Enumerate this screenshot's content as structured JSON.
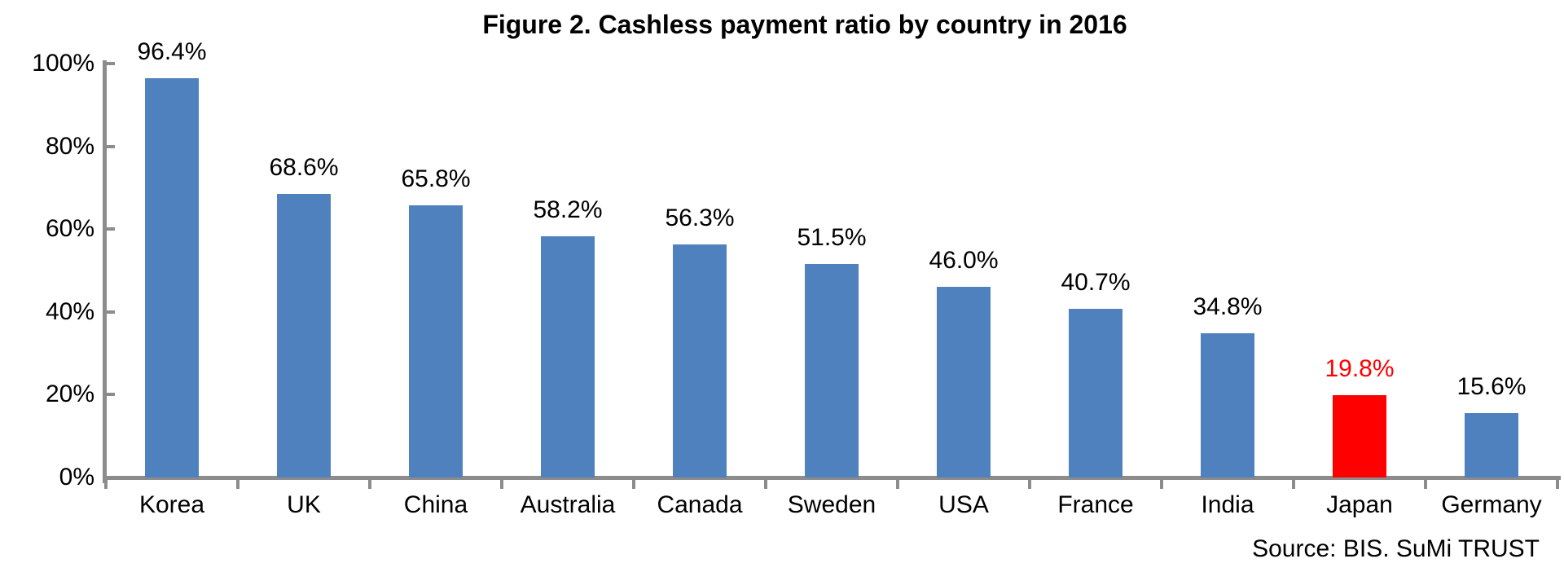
{
  "chart_data": {
    "type": "bar",
    "title": "Figure 2. Cashless payment ratio by country in 2016",
    "categories": [
      "Korea",
      "UK",
      "China",
      "Australia",
      "Canada",
      "Sweden",
      "USA",
      "France",
      "India",
      "Japan",
      "Germany"
    ],
    "values": [
      96.4,
      68.6,
      65.8,
      58.2,
      56.3,
      51.5,
      46.0,
      40.7,
      34.8,
      19.8,
      15.6
    ],
    "value_labels": [
      "96.4%",
      "68.6%",
      "65.8%",
      "58.2%",
      "56.3%",
      "51.5%",
      "46.0%",
      "40.7%",
      "34.8%",
      "19.8%",
      "15.6%"
    ],
    "highlight": {
      "index": 9,
      "category": "Japan"
    },
    "xlabel": "",
    "ylabel": "",
    "ylim": [
      0,
      100
    ],
    "grid": false,
    "legend_position": "none",
    "y_axis": {
      "ticks": [
        {
          "label": "0%",
          "value": 0
        },
        {
          "label": "20%",
          "value": 20
        },
        {
          "label": "40%",
          "value": 40
        },
        {
          "label": "60%",
          "value": 60
        },
        {
          "label": "80%",
          "value": 80
        },
        {
          "label": "100%",
          "value": 100
        }
      ]
    },
    "colors": {
      "bar": "#4E81BD",
      "highlight_bar": "#FF0000",
      "highlight_label": "#FF0000",
      "label_text": "#000000",
      "axis": "#8C8C8C"
    },
    "source": "Source: BIS. SuMi TRUST"
  }
}
